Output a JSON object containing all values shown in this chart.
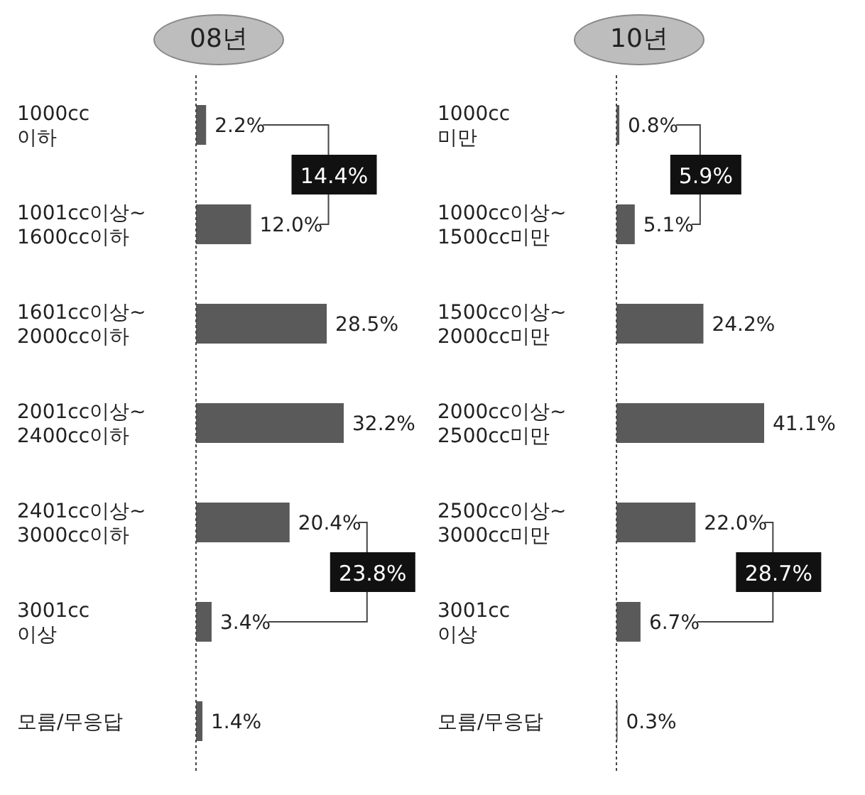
{
  "chart_data": [
    {
      "type": "bar",
      "orientation": "horizontal",
      "title": "08년",
      "categories": [
        "1000cc 이하",
        "1001cc이상~ 1600cc이하",
        "1601cc이상~ 2000cc이하",
        "2001cc이상~ 2400cc이하",
        "2401cc이상~ 3000cc이하",
        "3001cc 이상",
        "모름/무응답"
      ],
      "values": [
        2.2,
        12.0,
        28.5,
        32.2,
        20.4,
        3.4,
        1.4
      ],
      "value_labels": [
        "2.2%",
        "12.0%",
        "28.5%",
        "32.2%",
        "20.4%",
        "3.4%",
        "1.4%"
      ],
      "color": "#5a5a5a",
      "legend": false,
      "grid": false,
      "annotations": [
        "14.4%",
        "23.8%"
      ]
    },
    {
      "type": "bar",
      "orientation": "horizontal",
      "title": "10년",
      "categories": [
        "1000cc 미만",
        "1000cc이상~ 1500cc미만",
        "1500cc이상~ 2000cc미만",
        "2000cc이상~ 2500cc미만",
        "2500cc이상~ 3000cc미만",
        "3001cc 이상",
        "모름/무응답"
      ],
      "values": [
        0.8,
        5.1,
        24.2,
        41.1,
        22.0,
        6.7,
        0.3
      ],
      "value_labels": [
        "0.8%",
        "5.1%",
        "24.2%",
        "41.1%",
        "22.0%",
        "6.7%",
        "0.3%"
      ],
      "color": "#5a5a5a",
      "legend": false,
      "grid": false,
      "annotations": [
        "5.9%",
        "28.7%"
      ]
    }
  ]
}
